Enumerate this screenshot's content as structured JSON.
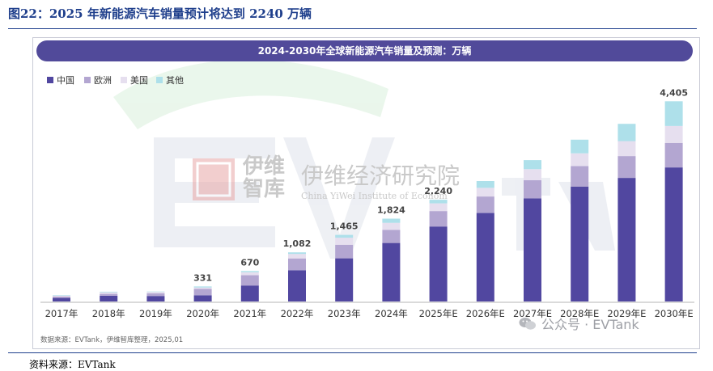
{
  "figure": {
    "title": "图22：2025 年新能源汽车销量预计将达到 2240 万辆",
    "source": "资料来源：EVTank",
    "data_note": "数据来源：EVTank，伊维智库整理，2025,01",
    "wechat_watermark": "公众号 · EVTank",
    "watermark": {
      "logo_cn": "伊维",
      "logo_cn2": "智库",
      "name_cn": "伊维经济研究院",
      "name_en": "China YiWei Institute of Econom",
      "letters": "EVTank"
    }
  },
  "colors": {
    "china": "#5147a0",
    "europe": "#b3a6d1",
    "usa": "#e6dfef",
    "other": "#aee0ea",
    "banner": "#514a9a",
    "title": "#1f3f8c"
  },
  "chart_data": {
    "type": "bar",
    "stacked": true,
    "title": "2024-2030年全球新能源汽车销量及预测：万辆",
    "categories": [
      "2017年",
      "2018年",
      "2019年",
      "2020年",
      "2021年",
      "2022年",
      "2023年",
      "2024年",
      "2025年E",
      "2026年E",
      "2027年E",
      "2028年E",
      "2029年E",
      "2030年E"
    ],
    "series": [
      {
        "name": "中国",
        "color_key": "china",
        "values": [
          78,
          126,
          121,
          137,
          352,
          689,
          950,
          1287,
          1650,
          1950,
          2270,
          2530,
          2720,
          2950
        ]
      },
      {
        "name": "欧洲",
        "color_key": "europe",
        "values": [
          31,
          41,
          56,
          139,
          228,
          259,
          298,
          290,
          340,
          360,
          400,
          450,
          480,
          540
        ]
      },
      {
        "name": "美国",
        "color_key": "usa",
        "values": [
          20,
          36,
          32,
          32,
          63,
          99,
          155,
          155,
          170,
          190,
          240,
          280,
          330,
          370
        ]
      },
      {
        "name": "其他",
        "color_key": "other",
        "values": [
          10,
          12,
          9,
          23,
          27,
          35,
          62,
          92,
          80,
          150,
          200,
          300,
          380,
          545
        ]
      }
    ],
    "total_labels": [
      "",
      "",
      "",
      "331",
      "670",
      "1,082",
      "1,465",
      "1,824",
      "2,240",
      "",
      "",
      "",
      "",
      "4,405"
    ],
    "ylim": [
      0,
      4500
    ],
    "grid": false,
    "legend_position": "top-left"
  }
}
